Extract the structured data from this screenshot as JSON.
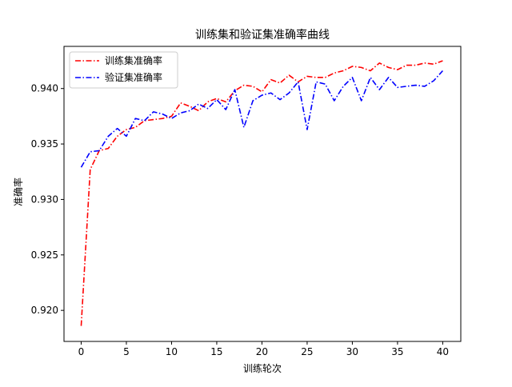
{
  "chart_data": {
    "type": "line",
    "title": "训练集和验证集准确率曲线",
    "xlabel": "训练轮次",
    "ylabel": "准确率",
    "xlim": [
      -1.9,
      42.0
    ],
    "ylim": [
      0.9172,
      0.9438
    ],
    "xticks": [
      0,
      5,
      10,
      15,
      20,
      25,
      30,
      35,
      40
    ],
    "yticks": [
      0.92,
      0.925,
      0.93,
      0.935,
      0.94
    ],
    "ytick_labels": [
      "0.920",
      "0.925",
      "0.930",
      "0.935",
      "0.940"
    ],
    "grid": false,
    "legend_position": "upper-left",
    "x": [
      0,
      1,
      2,
      3,
      4,
      5,
      6,
      7,
      8,
      9,
      10,
      11,
      12,
      13,
      14,
      15,
      16,
      17,
      18,
      19,
      20,
      21,
      22,
      23,
      24,
      25,
      26,
      27,
      28,
      29,
      30,
      31,
      32,
      33,
      34,
      35,
      36,
      37,
      38,
      39,
      40
    ],
    "series": [
      {
        "name": "训练集准确率",
        "color": "#ff0000",
        "linestyle": "dashdot",
        "values": [
          0.9186,
          0.9327,
          0.9344,
          0.9346,
          0.9357,
          0.9363,
          0.9365,
          0.9371,
          0.9372,
          0.9373,
          0.9375,
          0.9387,
          0.9384,
          0.938,
          0.9388,
          0.9391,
          0.9388,
          0.9398,
          0.9403,
          0.9402,
          0.9397,
          0.9408,
          0.9405,
          0.9412,
          0.9406,
          0.9411,
          0.941,
          0.941,
          0.9414,
          0.9416,
          0.942,
          0.9419,
          0.9416,
          0.9423,
          0.9419,
          0.9417,
          0.9421,
          0.9421,
          0.9423,
          0.9422,
          0.9425
        ]
      },
      {
        "name": "验证集准确率",
        "color": "#0000ff",
        "linestyle": "dashdot",
        "values": [
          0.9329,
          0.9343,
          0.9344,
          0.9357,
          0.9364,
          0.9357,
          0.9373,
          0.9371,
          0.9379,
          0.9377,
          0.9373,
          0.9378,
          0.938,
          0.9386,
          0.9382,
          0.939,
          0.9381,
          0.9399,
          0.9365,
          0.9389,
          0.9394,
          0.9396,
          0.939,
          0.9396,
          0.9406,
          0.9363,
          0.9406,
          0.9404,
          0.9389,
          0.9402,
          0.941,
          0.9389,
          0.941,
          0.9399,
          0.941,
          0.9401,
          0.9402,
          0.9403,
          0.9402,
          0.9407,
          0.9416
        ]
      }
    ]
  }
}
